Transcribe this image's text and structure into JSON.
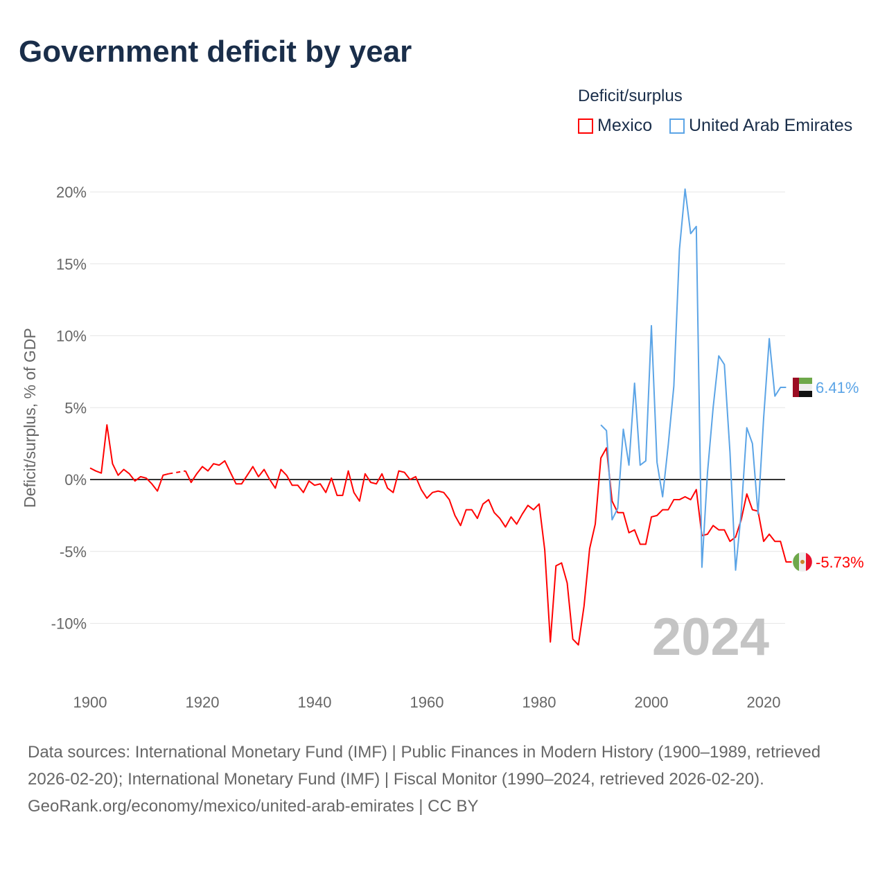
{
  "title": "Government deficit by year",
  "legend": {
    "title": "Deficit/surplus",
    "items": [
      {
        "label": "Mexico",
        "color": "#ff0000"
      },
      {
        "label": "United Arab Emirates",
        "color": "#5ba4e6"
      }
    ]
  },
  "watermark_year": "2024",
  "footer": {
    "sources": "Data sources: International Monetary Fund (IMF) | Public Finances in Modern History (1900–1989, retrieved 2026-02-20); International Monetary Fund (IMF) | Fiscal Monitor (1990–2024, retrieved 2026-02-20).",
    "credit": "GeoRank.org/economy/mexico/united-arab-emirates | CC BY"
  },
  "chart_data": {
    "type": "line",
    "title": "Government deficit by year",
    "xlabel": "",
    "ylabel": "Deficit/surplus, % of GDP",
    "xlim": [
      1900,
      2024
    ],
    "ylim": [
      -13,
      21
    ],
    "xticks": [
      1900,
      1920,
      1940,
      1960,
      1980,
      2000,
      2020
    ],
    "xtick_labels": [
      "1900",
      "1920",
      "1940",
      "1960",
      "1980",
      "2000",
      "2020"
    ],
    "yticks": [
      20,
      15,
      10,
      5,
      0,
      -5,
      -10
    ],
    "ytick_labels": [
      "20%",
      "15%",
      "10%",
      "5%",
      "0%",
      "-5%",
      "-10%"
    ],
    "grid": true,
    "legend_position": "top-right",
    "series": [
      {
        "name": "Mexico",
        "color": "#ff0000",
        "end_label": "-5.73%",
        "flag": "mexico-flag",
        "start": 1900,
        "values": [
          0.8,
          0.6,
          0.45,
          3.8,
          1.1,
          0.3,
          0.7,
          0.4,
          -0.1,
          0.2,
          0.1,
          -0.3,
          -0.8,
          0.3,
          0.4,
          null,
          null,
          0.6,
          -0.2,
          0.4,
          0.9,
          0.6,
          1.1,
          1.0,
          1.3,
          0.5,
          -0.3,
          -0.3,
          0.3,
          0.9,
          0.2,
          0.7,
          0.0,
          -0.6,
          0.7,
          0.3,
          -0.4,
          -0.4,
          -0.9,
          -0.1,
          -0.4,
          -0.3,
          -0.9,
          0.1,
          -1.1,
          -1.1,
          0.6,
          -0.9,
          -1.5,
          0.4,
          -0.2,
          -0.3,
          0.4,
          -0.6,
          -0.9,
          0.6,
          0.5,
          0.0,
          0.2,
          -0.7,
          -1.3,
          -0.9,
          -0.8,
          -0.9,
          -1.4,
          -2.5,
          -3.2,
          -2.1,
          -2.1,
          -2.7,
          -1.7,
          -1.4,
          -2.3,
          -2.7,
          -3.3,
          -2.6,
          -3.1,
          -2.4,
          -1.8,
          -2.1,
          -1.7,
          -4.9,
          -11.3,
          -6.0,
          -5.8,
          -7.2,
          -11.1,
          -11.5,
          -8.8,
          -4.8,
          -3.1,
          1.5,
          2.2,
          -1.5,
          -2.3,
          -2.3,
          -3.7,
          -3.5,
          -4.5,
          -4.5,
          -2.6,
          -2.5,
          -2.1,
          -2.1,
          -1.4,
          -1.4,
          -1.2,
          -1.4,
          -0.7,
          -3.9,
          -3.8,
          -3.2,
          -3.5,
          -3.5,
          -4.3,
          -4.0,
          -2.8,
          -1.0,
          -2.1,
          -2.2,
          -4.3,
          -3.8,
          -4.3,
          -4.3,
          -5.73,
          -5.73
        ]
      },
      {
        "name": "United Arab Emirates",
        "color": "#5ba4e6",
        "end_label": "6.41%",
        "flag": "uae-flag",
        "start": 1991,
        "values": [
          3.8,
          3.4,
          -2.8,
          -2.0,
          3.5,
          1.0,
          6.7,
          1.0,
          1.3,
          10.7,
          1.2,
          -1.2,
          2.4,
          6.5,
          16.0,
          20.2,
          17.1,
          17.6,
          -6.1,
          0.5,
          5.0,
          8.6,
          8.0,
          1.9,
          -6.3,
          -2.3,
          3.6,
          2.5,
          -2.4,
          4.3,
          9.8,
          5.8,
          6.41,
          6.41
        ]
      }
    ]
  }
}
